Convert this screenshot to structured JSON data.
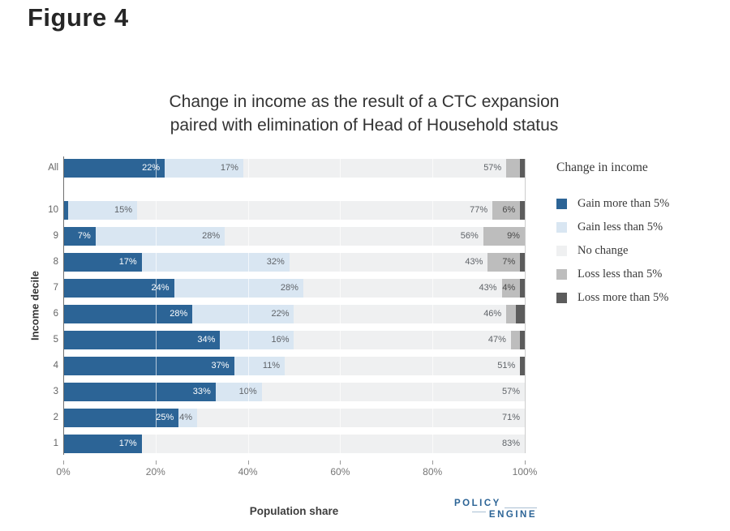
{
  "figure_label": "Figure 4",
  "chart_data": {
    "type": "bar",
    "stacked": true,
    "orientation": "horizontal",
    "title": "Change in income as the result of a CTC expansion paired with elimination of Head of Household status",
    "title_lines": [
      "Change in income as the result of a CTC expansion",
      "paired with elimination of Head of Household status"
    ],
    "xlabel": "Population share",
    "ylabel": "Income decile",
    "xlim": [
      0,
      100
    ],
    "x_ticks": [
      "0%",
      "20%",
      "40%",
      "60%",
      "80%",
      "100%"
    ],
    "grid": true,
    "categories": [
      "All",
      "10",
      "9",
      "8",
      "7",
      "6",
      "5",
      "4",
      "3",
      "2",
      "1"
    ],
    "legend": {
      "title": "Change in income",
      "position": "right"
    },
    "series": [
      {
        "name": "Gain more than 5%",
        "color": "#2C6496",
        "label_color": "#ffffff",
        "values": [
          22,
          1,
          7,
          17,
          24,
          28,
          34,
          37,
          33,
          25,
          17
        ],
        "labels": [
          "22%",
          "",
          "7%",
          "17%",
          "24%",
          "28%",
          "34%",
          "37%",
          "33%",
          "25%",
          "17%"
        ]
      },
      {
        "name": "Gain less than 5%",
        "color": "#D9E6F2",
        "label_color": "#5f6368",
        "values": [
          17,
          15,
          28,
          32,
          28,
          22,
          16,
          11,
          10,
          4,
          0
        ],
        "labels": [
          "17%",
          "15%",
          "28%",
          "32%",
          "28%",
          "22%",
          "16%",
          "11%",
          "10%",
          "4%",
          ""
        ]
      },
      {
        "name": "No change",
        "color": "#EFF0F1",
        "label_color": "#5f6368",
        "values": [
          57,
          77,
          56,
          43,
          43,
          46,
          47,
          51,
          57,
          71,
          83
        ],
        "labels": [
          "57%",
          "77%",
          "56%",
          "43%",
          "43%",
          "46%",
          "47%",
          "51%",
          "57%",
          "71%",
          "83%"
        ]
      },
      {
        "name": "Loss less than 5%",
        "color": "#BDBDBD",
        "label_color": "#4a4a4a",
        "values": [
          3,
          6,
          9,
          7,
          4,
          2,
          2,
          0,
          0,
          0,
          0
        ],
        "labels": [
          "",
          "6%",
          "9%",
          "7%",
          "4%",
          "",
          "",
          "",
          "",
          "",
          ""
        ]
      },
      {
        "name": "Loss more than 5%",
        "color": "#5C5C5C",
        "label_color": "#ffffff",
        "values": [
          1,
          1,
          0,
          1,
          1,
          2,
          1,
          1,
          0,
          0,
          0
        ],
        "labels": [
          "",
          "",
          "",
          "",
          "",
          "",
          "",
          "",
          "",
          "",
          ""
        ]
      }
    ]
  },
  "branding": {
    "logo_line1": "POLICY",
    "logo_line2": "ENGINE"
  }
}
